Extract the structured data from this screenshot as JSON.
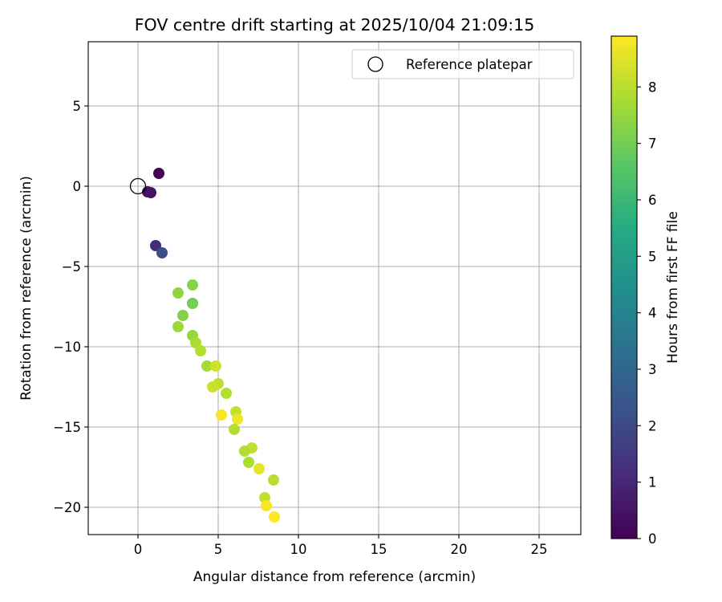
{
  "chart_data": {
    "type": "scatter",
    "title": "FOV centre drift starting at 2025/10/04 21:09:15",
    "xlabel": "Angular distance from reference (arcmin)",
    "ylabel": "Rotation from reference (arcmin)",
    "xlim": [
      -3.1,
      27.6
    ],
    "ylim": [
      -21.7,
      9.0
    ],
    "xticks": [
      0,
      5,
      10,
      15,
      20,
      25
    ],
    "yticks": [
      5,
      0,
      -5,
      -10,
      -15,
      -20
    ],
    "xtick_labels": [
      "0",
      "5",
      "10",
      "15",
      "20",
      "25"
    ],
    "ytick_labels": [
      "5",
      "0",
      "−5",
      "−10",
      "−15",
      "−20"
    ],
    "grid": true,
    "legend": {
      "location": "upper right",
      "entries": [
        "Reference platepar"
      ]
    },
    "reference_point": {
      "x": 0,
      "y": 0
    },
    "colorbar": {
      "label": "Hours from first FF file",
      "range": [
        0,
        8.9
      ],
      "ticks": [
        0,
        1,
        2,
        3,
        4,
        5,
        6,
        7,
        8
      ],
      "tick_labels": [
        "0",
        "1",
        "2",
        "3",
        "4",
        "5",
        "6",
        "7",
        "8"
      ],
      "colormap": "viridis"
    },
    "points": [
      {
        "x": 1.3,
        "y": 0.8,
        "h": 0.05
      },
      {
        "x": 0.6,
        "y": -0.35,
        "h": 0.3
      },
      {
        "x": 0.8,
        "y": -0.4,
        "h": 0.5
      },
      {
        "x": 1.1,
        "y": -3.7,
        "h": 1.1
      },
      {
        "x": 1.5,
        "y": -4.15,
        "h": 2.1
      },
      {
        "x": 3.4,
        "y": -6.15,
        "h": 7.3
      },
      {
        "x": 2.5,
        "y": -6.65,
        "h": 7.4
      },
      {
        "x": 3.4,
        "y": -7.3,
        "h": 6.4
      },
      {
        "x": 3.4,
        "y": -7.3,
        "h": 7.0
      },
      {
        "x": 2.8,
        "y": -8.05,
        "h": 7.2
      },
      {
        "x": 2.5,
        "y": -8.75,
        "h": 7.6
      },
      {
        "x": 3.4,
        "y": -9.3,
        "h": 7.5
      },
      {
        "x": 3.6,
        "y": -9.75,
        "h": 7.8
      },
      {
        "x": 3.9,
        "y": -10.25,
        "h": 7.9
      },
      {
        "x": 4.3,
        "y": -11.2,
        "h": 7.7
      },
      {
        "x": 4.85,
        "y": -11.2,
        "h": 8.3
      },
      {
        "x": 5.0,
        "y": -12.3,
        "h": 8.1
      },
      {
        "x": 4.65,
        "y": -12.5,
        "h": 8.2
      },
      {
        "x": 5.5,
        "y": -12.9,
        "h": 7.9
      },
      {
        "x": 6.1,
        "y": -14.05,
        "h": 8.1
      },
      {
        "x": 5.2,
        "y": -14.25,
        "h": 8.8
      },
      {
        "x": 6.2,
        "y": -14.5,
        "h": 8.7
      },
      {
        "x": 6.0,
        "y": -15.15,
        "h": 7.9
      },
      {
        "x": 7.1,
        "y": -16.3,
        "h": 8.1
      },
      {
        "x": 6.65,
        "y": -16.5,
        "h": 7.9
      },
      {
        "x": 6.9,
        "y": -17.2,
        "h": 7.8
      },
      {
        "x": 7.55,
        "y": -17.6,
        "h": 8.6
      },
      {
        "x": 8.45,
        "y": -18.3,
        "h": 8.0
      },
      {
        "x": 7.9,
        "y": -19.4,
        "h": 8.1
      },
      {
        "x": 8.0,
        "y": -19.9,
        "h": 8.8
      },
      {
        "x": 8.5,
        "y": -20.6,
        "h": 8.9
      }
    ]
  }
}
